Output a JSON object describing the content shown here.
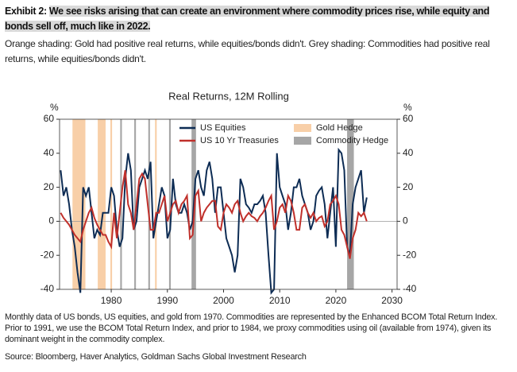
{
  "header": {
    "exhibit": "Exhibit 2:",
    "title": "We see risks arising that can create an environment where commodity prices rise, while equity and bonds sell off, much like in 2022.",
    "subtitle": "Orange shading: Gold had positive real returns, while equities/bonds didn't. Grey shading: Commodities had positive real returns, while equities/bonds didn't."
  },
  "chart_data": {
    "type": "line",
    "title": "Real Returns, 12M Rolling",
    "y_unit": "%",
    "y2_unit": "%",
    "x": [
      1971,
      1971.5,
      1972,
      1972.5,
      1973,
      1973.5,
      1974,
      1974.5,
      1975,
      1975.5,
      1976,
      1976.5,
      1977,
      1977.5,
      1978,
      1978.5,
      1979,
      1979.5,
      1980,
      1980.5,
      1981,
      1981.5,
      1982,
      1982.5,
      1983,
      1983.5,
      1984,
      1984.5,
      1985,
      1985.5,
      1986,
      1986.5,
      1987,
      1987.5,
      1988,
      1988.5,
      1989,
      1989.5,
      1990,
      1990.5,
      1991,
      1991.5,
      1992,
      1992.5,
      1993,
      1993.5,
      1994,
      1994.5,
      1995,
      1995.5,
      1996,
      1996.5,
      1997,
      1997.5,
      1998,
      1998.5,
      1999,
      1999.5,
      2000,
      2000.5,
      2001,
      2001.5,
      2002,
      2002.5,
      2003,
      2003.5,
      2004,
      2004.5,
      2005,
      2005.5,
      2006,
      2006.5,
      2007,
      2007.5,
      2008,
      2008.5,
      2009,
      2009.5,
      2010,
      2010.5,
      2011,
      2011.5,
      2012,
      2012.5,
      2013,
      2013.5,
      2014,
      2014.5,
      2015,
      2015.5,
      2016,
      2016.5,
      2017,
      2017.5,
      2018,
      2018.5,
      2019,
      2019.5,
      2020,
      2020.5,
      2021,
      2021.5,
      2022,
      2022.5,
      2023,
      2023.5,
      2024,
      2024.5,
      2025,
      2025.5
    ],
    "series": [
      {
        "name": "US Equities",
        "color": "#0d2c54",
        "values": [
          30,
          15,
          20,
          10,
          -5,
          -15,
          -30,
          -42,
          20,
          15,
          20,
          5,
          -10,
          -5,
          -8,
          5,
          5,
          5,
          20,
          15,
          -5,
          -15,
          -10,
          25,
          40,
          30,
          -5,
          0,
          20,
          25,
          30,
          25,
          35,
          -10,
          0,
          10,
          20,
          15,
          -10,
          -5,
          25,
          10,
          5,
          5,
          10,
          5,
          -5,
          0,
          25,
          30,
          20,
          15,
          30,
          35,
          25,
          5,
          20,
          20,
          5,
          -10,
          -15,
          -20,
          -30,
          -20,
          25,
          20,
          10,
          8,
          5,
          10,
          10,
          12,
          15,
          5,
          -20,
          -42,
          -40,
          40,
          20,
          15,
          10,
          -5,
          5,
          20,
          20,
          25,
          15,
          10,
          5,
          -5,
          0,
          15,
          18,
          20,
          10,
          -10,
          5,
          20,
          -15,
          42,
          40,
          30,
          -15,
          -20,
          10,
          20,
          25,
          30,
          5,
          14
        ]
      },
      {
        "name": "US 10 Yr Treasuries",
        "color": "#c0302b",
        "values": [
          5,
          2,
          0,
          -2,
          -5,
          -8,
          -10,
          -12,
          -5,
          0,
          5,
          8,
          2,
          -2,
          -5,
          -8,
          -8,
          -12,
          -15,
          5,
          -10,
          5,
          20,
          30,
          10,
          5,
          -5,
          10,
          25,
          28,
          25,
          10,
          -5,
          -5,
          5,
          5,
          10,
          15,
          0,
          5,
          10,
          12,
          5,
          10,
          12,
          15,
          -10,
          -8,
          15,
          18,
          0,
          5,
          8,
          10,
          12,
          12,
          -3,
          -5,
          5,
          10,
          8,
          5,
          10,
          12,
          5,
          0,
          3,
          5,
          3,
          2,
          0,
          3,
          5,
          8,
          12,
          15,
          -5,
          0,
          8,
          10,
          5,
          15,
          12,
          5,
          -5,
          -5,
          8,
          10,
          5,
          2,
          5,
          0,
          2,
          3,
          -3,
          0,
          10,
          12,
          15,
          10,
          -5,
          -8,
          -15,
          -22,
          -10,
          -5,
          5,
          3,
          5,
          0
        ]
      }
    ],
    "shading": [
      {
        "name": "Gold Hedge",
        "color": "#f8cfa8",
        "periods": [
          [
            1973.1,
            1975.4
          ],
          [
            1977.6,
            1979.0
          ],
          [
            1979.85,
            1980.15
          ],
          [
            1987.8,
            1988.1
          ]
        ]
      },
      {
        "name": "Commodity Hedge",
        "color": "#a6a6a6",
        "periods": [
          [
            1981.6,
            1981.9
          ],
          [
            1984.1,
            1984.4
          ],
          [
            1986.6,
            1986.9
          ],
          [
            1990.3,
            1990.6
          ],
          [
            1994.3,
            1995.1
          ],
          [
            2022.0,
            2023.2
          ]
        ]
      }
    ],
    "xlim": [
      1970.8,
      2030.9
    ],
    "xticks": [
      1980,
      1990,
      2000,
      2010,
      2020,
      2030
    ],
    "ylim": [
      -40,
      60
    ],
    "yticks": [
      -40,
      -20,
      0,
      20,
      40,
      60
    ],
    "y2lim": [
      -40,
      60
    ],
    "y2ticks": [
      -40,
      -20,
      0,
      20,
      40,
      60
    ]
  },
  "footer": {
    "note": "Monthly data of US bonds, US equities, and gold from 1970. Commodities are represented by the Enhanced BCOM Total Return Index. Prior to 1991, we use the BCOM Total Return Index, and prior to 1984, we proxy commodities using oil (available from 1974), given its dominant weight in the commodity complex.",
    "source": "Source: Bloomberg, Haver Analytics, Goldman Sachs Global Investment Research"
  }
}
